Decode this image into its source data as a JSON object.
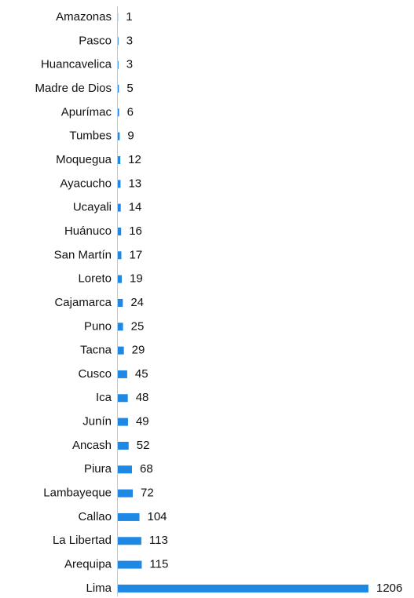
{
  "chart_data": {
    "type": "barh",
    "categories": [
      "Amazonas",
      "Pasco",
      "Huancavelica",
      "Madre de Dios",
      "Apurímac",
      "Tumbes",
      "Moquegua",
      "Ayacucho",
      "Ucayali",
      "Huánuco",
      "San Martín",
      "Loreto",
      "Cajamarca",
      "Puno",
      "Tacna",
      "Cusco",
      "Ica",
      "Junín",
      "Ancash",
      "Piura",
      "Lambayeque",
      "Callao",
      "La Libertad",
      "Arequipa",
      "Lima"
    ],
    "values": [
      1,
      3,
      3,
      5,
      6,
      9,
      12,
      13,
      14,
      16,
      17,
      19,
      24,
      25,
      29,
      45,
      48,
      49,
      52,
      68,
      72,
      104,
      113,
      115,
      1206
    ],
    "color": "#1e88e5"
  }
}
